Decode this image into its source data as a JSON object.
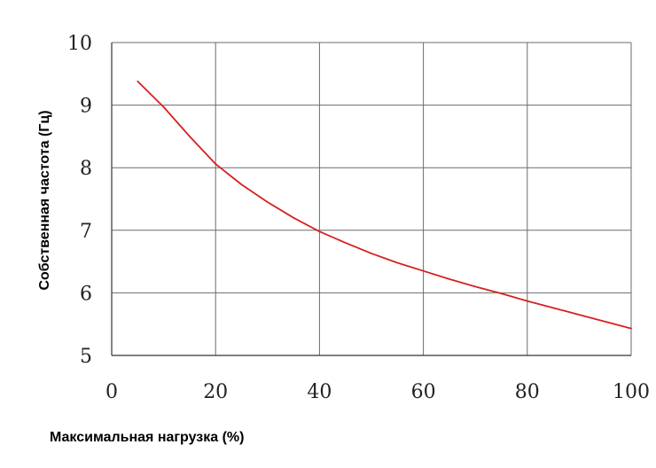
{
  "chart_data": {
    "type": "line",
    "title": "",
    "xlabel": "Максимальная нагрузка (%)",
    "ylabel": "Собственная частота (Гц)",
    "xlim": [
      0,
      100
    ],
    "ylim": [
      5,
      10
    ],
    "xticks": [
      0,
      20,
      40,
      60,
      80,
      100
    ],
    "yticks": [
      5,
      6,
      7,
      8,
      9,
      10
    ],
    "grid": true,
    "legend": "none",
    "series": [
      {
        "color": "#d62020",
        "x": [
          5,
          10,
          15,
          20,
          25,
          30,
          35,
          40,
          45,
          50,
          55,
          60,
          65,
          70,
          75,
          80,
          85,
          90,
          95,
          100
        ],
        "y": [
          9.38,
          8.97,
          8.5,
          8.06,
          7.73,
          7.45,
          7.2,
          6.98,
          6.8,
          6.63,
          6.48,
          6.35,
          6.22,
          6.1,
          5.99,
          5.87,
          5.76,
          5.65,
          5.54,
          5.43
        ]
      }
    ]
  }
}
